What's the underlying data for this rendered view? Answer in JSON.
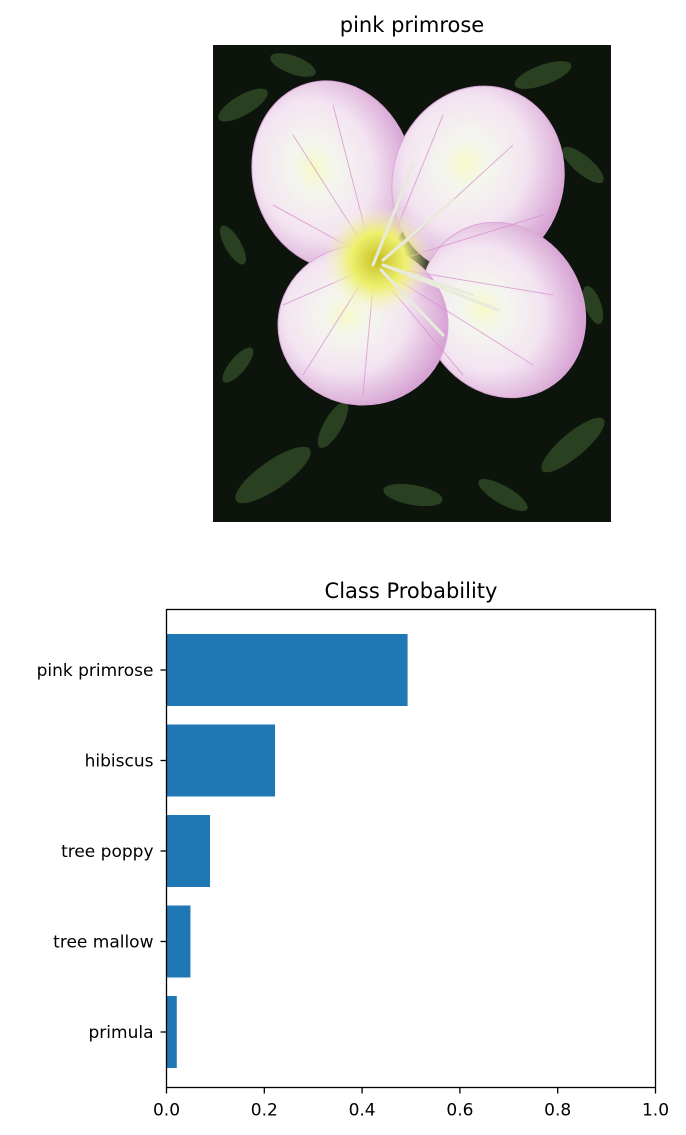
{
  "image_panel": {
    "title": "pink primrose",
    "image_subject": "pink primrose flower"
  },
  "chart_data": {
    "type": "bar",
    "orientation": "horizontal",
    "title": "Class Probability",
    "xlabel": "",
    "ylabel": "",
    "categories": [
      "pink primrose",
      "hibiscus",
      "tree poppy",
      "tree mallow",
      "primula"
    ],
    "values": [
      0.493,
      0.222,
      0.089,
      0.049,
      0.021
    ],
    "xlim": [
      0,
      1.0
    ],
    "xticks": [
      "0.0",
      "0.2",
      "0.4",
      "0.6",
      "0.8",
      "1.0"
    ],
    "grid": false,
    "bar_color": "#1f77b4"
  }
}
